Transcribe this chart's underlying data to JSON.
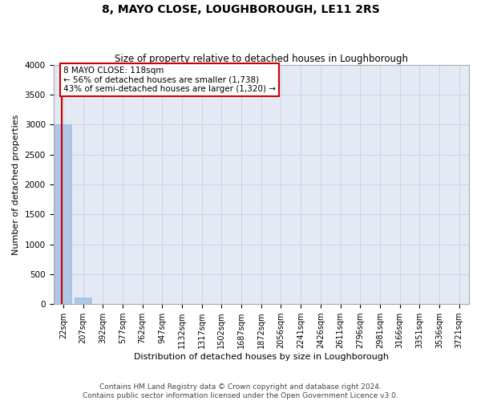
{
  "title": "8, MAYO CLOSE, LOUGHBOROUGH, LE11 2RS",
  "subtitle": "Size of property relative to detached houses in Loughborough",
  "xlabel": "Distribution of detached houses by size in Loughborough",
  "ylabel": "Number of detached properties",
  "footer1": "Contains HM Land Registry data © Crown copyright and database right 2024.",
  "footer2": "Contains public sector information licensed under the Open Government Licence v3.0.",
  "ylim": [
    0,
    4000
  ],
  "bar_labels": [
    "22sqm",
    "207sqm",
    "392sqm",
    "577sqm",
    "762sqm",
    "947sqm",
    "1132sqm",
    "1317sqm",
    "1502sqm",
    "1687sqm",
    "1872sqm",
    "2056sqm",
    "2241sqm",
    "2426sqm",
    "2611sqm",
    "2796sqm",
    "2981sqm",
    "3166sqm",
    "3351sqm",
    "3536sqm",
    "3721sqm"
  ],
  "bar_values": [
    3000,
    105,
    0,
    0,
    0,
    0,
    0,
    0,
    0,
    0,
    0,
    0,
    0,
    0,
    0,
    0,
    0,
    0,
    0,
    0,
    0
  ],
  "bar_color": "#aec6e8",
  "bar_edge_color": "#9ab8d8",
  "grid_color": "#c8d4e8",
  "bg_color": "#e4eaf4",
  "vline_color": "#cc0000",
  "vline_x": -0.07,
  "annotation_text": "8 MAYO CLOSE: 118sqm\n← 56% of detached houses are smaller (1,738)\n43% of semi-detached houses are larger (1,320) →",
  "annotation_facecolor": "#ffffff",
  "annotation_edgecolor": "#cc0000",
  "yticks": [
    0,
    500,
    1000,
    1500,
    2000,
    2500,
    3000,
    3500,
    4000
  ],
  "title_fontsize": 10,
  "subtitle_fontsize": 8.5,
  "ylabel_fontsize": 8,
  "xlabel_fontsize": 8,
  "tick_fontsize": 7.5,
  "xtick_fontsize": 7,
  "footer_fontsize": 6.5
}
